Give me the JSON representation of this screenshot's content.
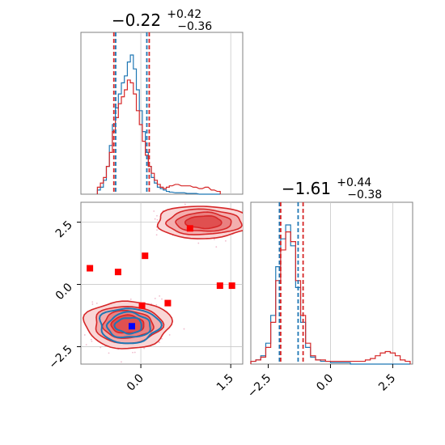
{
  "colors": {
    "blue": "#1f77b4",
    "red": "#d62728",
    "red_fill": "#f3b0b0",
    "red_fill_dark": "#e06060",
    "marker_red": "#ff0000",
    "marker_blue": "#0000ff",
    "grid": "#c8c8c8"
  },
  "chart_data": [
    {
      "type": "histogram",
      "panel": "top-left",
      "title": {
        "main": "−0.22",
        "sup": "+0.42",
        "sub": "−0.36"
      },
      "x_range": [
        -1.0,
        1.7
      ],
      "x_grid": [
        0.0,
        1.5
      ],
      "quantile_lines": {
        "blue": [
          -0.42,
          0.1
        ],
        "red": [
          -0.45,
          0.14
        ]
      },
      "x": [
        -0.7,
        -0.65,
        -0.6,
        -0.55,
        -0.5,
        -0.45,
        -0.4,
        -0.35,
        -0.3,
        -0.25,
        -0.2,
        -0.15,
        -0.1,
        -0.05,
        0.0,
        0.05,
        0.1,
        0.15,
        0.2,
        0.25,
        0.3,
        0.35,
        0.4,
        0.45,
        0.5,
        0.6,
        0.7,
        0.8,
        0.9,
        1.0,
        1.1,
        1.2,
        1.3
      ],
      "series": [
        {
          "color": "blue",
          "values": [
            0.03,
            0.05,
            0.1,
            0.2,
            0.35,
            0.5,
            0.62,
            0.72,
            0.8,
            0.85,
            0.95,
            1.0,
            0.9,
            0.75,
            0.6,
            0.45,
            0.3,
            0.2,
            0.12,
            0.08,
            0.05,
            0.04,
            0.03,
            0.02,
            0.015,
            0.01,
            0.01,
            0.005,
            0.005,
            0.0,
            0.0,
            0.0,
            0.0
          ]
        },
        {
          "color": "red",
          "values": [
            0.05,
            0.08,
            0.12,
            0.2,
            0.3,
            0.45,
            0.55,
            0.65,
            0.7,
            0.75,
            0.82,
            0.8,
            0.72,
            0.6,
            0.5,
            0.38,
            0.28,
            0.2,
            0.15,
            0.1,
            0.07,
            0.05,
            0.04,
            0.05,
            0.06,
            0.07,
            0.06,
            0.06,
            0.05,
            0.04,
            0.05,
            0.03,
            0.02
          ]
        }
      ]
    },
    {
      "type": "histogram",
      "panel": "bottom-right",
      "title": {
        "main": "−1.61",
        "sup": "+0.44",
        "sub": "−0.38"
      },
      "x_range": [
        -3.2,
        3.3
      ],
      "x_grid": [
        0.0,
        2.5
      ],
      "x_ticks": [
        "−2.5",
        "0.0",
        "2.5"
      ],
      "x_tick_values": [
        -2.5,
        0.0,
        2.5
      ],
      "quantile_lines": {
        "blue": [
          -2.05,
          -1.3
        ],
        "red": [
          -2.0,
          -1.1
        ]
      },
      "x": [
        -3.1,
        -2.9,
        -2.7,
        -2.5,
        -2.3,
        -2.1,
        -1.9,
        -1.7,
        -1.5,
        -1.3,
        -1.1,
        -0.9,
        -0.7,
        -0.5,
        -0.3,
        -0.1,
        0.1,
        0.3,
        0.5,
        0.7,
        0.9,
        1.1,
        1.3,
        1.5,
        1.7,
        1.9,
        2.1,
        2.3,
        2.5,
        2.7,
        2.9,
        3.1
      ],
      "series": [
        {
          "color": "blue",
          "values": [
            0.02,
            0.03,
            0.06,
            0.15,
            0.35,
            0.7,
            0.9,
            1.0,
            0.85,
            0.55,
            0.3,
            0.12,
            0.05,
            0.03,
            0.02,
            0.02,
            0.01,
            0.01,
            0.01,
            0.01,
            0.0,
            0.0,
            0.0,
            0.0,
            0.0,
            0.0,
            0.0,
            0.0,
            0.0,
            0.0,
            0.0,
            0.0
          ]
        },
        {
          "color": "red",
          "values": [
            0.02,
            0.03,
            0.05,
            0.12,
            0.3,
            0.6,
            0.82,
            0.95,
            0.88,
            0.6,
            0.35,
            0.15,
            0.06,
            0.03,
            0.03,
            0.02,
            0.02,
            0.02,
            0.02,
            0.02,
            0.02,
            0.02,
            0.02,
            0.03,
            0.04,
            0.06,
            0.08,
            0.09,
            0.08,
            0.06,
            0.03,
            0.02
          ]
        }
      ]
    },
    {
      "type": "scatter",
      "panel": "bottom-left",
      "x_range": [
        -1.0,
        1.7
      ],
      "y_range": [
        -3.2,
        3.3
      ],
      "x_ticks": [
        "0.0",
        "1.5"
      ],
      "x_tick_values": [
        0.0,
        1.5
      ],
      "y_ticks": [
        "−2.5",
        "0.0",
        "2.5"
      ],
      "y_tick_values": [
        -2.5,
        0.0,
        2.5
      ],
      "x_grid": [
        0.0,
        1.5
      ],
      "y_grid": [
        -2.5,
        0.0,
        2.5
      ],
      "contour_regions": [
        {
          "name": "main-blob-red",
          "cx": -0.22,
          "cy": -1.61,
          "rx": 0.72,
          "ry": 0.95
        },
        {
          "name": "upper-blob-red",
          "cx": 1.05,
          "cy": 2.5,
          "rx": 0.8,
          "ry": 0.65
        }
      ],
      "blue_contours": {
        "cx": -0.2,
        "cy": -1.65,
        "rx": 0.5,
        "ry": 0.7
      },
      "markers_red": [
        {
          "x": -0.85,
          "y": 0.65
        },
        {
          "x": -0.38,
          "y": 0.5
        },
        {
          "x": 0.07,
          "y": 1.15
        },
        {
          "x": 0.82,
          "y": 2.25
        },
        {
          "x": 1.32,
          "y": -0.05
        },
        {
          "x": 1.52,
          "y": -0.05
        },
        {
          "x": 0.45,
          "y": -0.75
        },
        {
          "x": 0.02,
          "y": -0.85
        }
      ],
      "markers_blue": [
        {
          "x": -0.15,
          "y": -1.68
        }
      ]
    }
  ]
}
